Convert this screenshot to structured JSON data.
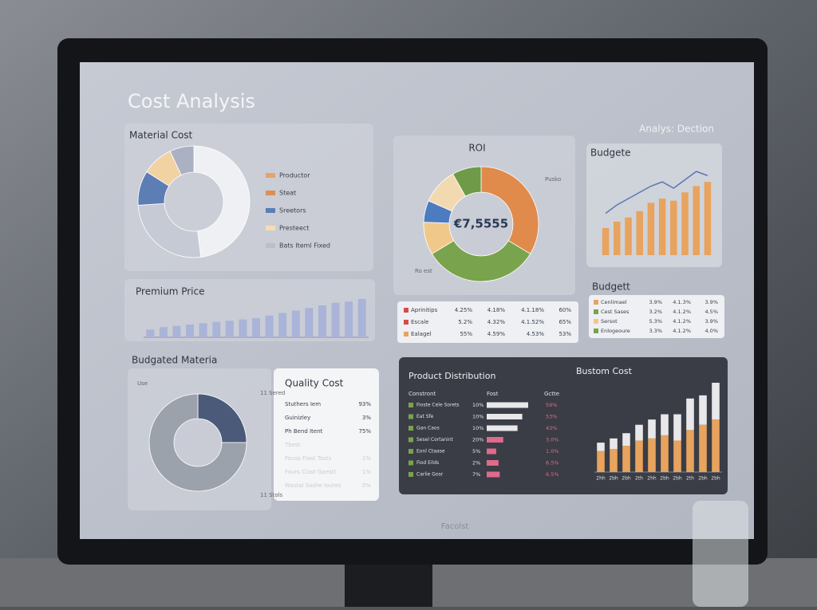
{
  "header": {
    "title": "Cost Analysis",
    "subtitle": "Analys: Dection",
    "brand": "Facolst"
  },
  "chart_data": [
    {
      "type": "donut",
      "title": "Material Cost",
      "categories": [
        "Productor",
        "Steat",
        "Sreetors",
        "Presteect",
        "Bats Iteml Fixed"
      ],
      "values": [
        48,
        26,
        10,
        9,
        7
      ],
      "colors": [
        "#eef0f3",
        "#c5cad4",
        "#5d7db5",
        "#f1d2a3",
        "#a9b1c2"
      ],
      "legend_colors": [
        "#e6a46a",
        "#d98f55",
        "#5d7db5",
        "#f5dcb5",
        "#b8bfcc"
      ]
    },
    {
      "type": "bar",
      "title": "Premium Price",
      "values": [
        6,
        8,
        9,
        10,
        11,
        12,
        13,
        14,
        15,
        17,
        19,
        21,
        23,
        25,
        27,
        28,
        30
      ],
      "color": "#aab3d8"
    },
    {
      "type": "donut",
      "title": "ROI",
      "center_label": "€7,5555",
      "annotations": [
        "Pusko",
        "Ro est"
      ],
      "values": [
        33,
        32,
        9,
        6,
        10,
        8
      ],
      "colors": [
        "#e08a4c",
        "#7aa34e",
        "#f0c88a",
        "#4d7bbf",
        "#f3d9b0",
        "#6f9a48"
      ]
    },
    {
      "type": "bar_line",
      "title": "Budgete",
      "values": [
        13,
        16,
        18,
        21,
        25,
        27,
        26,
        30,
        33,
        35
      ],
      "line": [
        20,
        24,
        27,
        30,
        33,
        35,
        32,
        36,
        40,
        38
      ],
      "color": "#e8a35e",
      "line_color": "#5a78b0"
    },
    {
      "type": "donut",
      "title": "Budgated Materia",
      "annotations": [
        "Use",
        "11 Sered",
        "11 Stols"
      ],
      "values": [
        25,
        75
      ],
      "colors": [
        "#4a5a78",
        "#9ca2ab"
      ]
    },
    {
      "type": "hbar",
      "title": "Product Distribution",
      "headers": [
        "Constront",
        "Fost",
        "Gctte"
      ],
      "categories": [
        "Fioste Cele Sorets",
        "Eat Sfe",
        "Gan Caos",
        "Sesel Cortanint",
        "Eonl Ctaase",
        "Fiod Eilds",
        "Carlie Gosr"
      ],
      "left_labels": [
        "10%",
        "10%",
        "10%",
        "20%",
        "5%",
        "2%",
        "7%"
      ],
      "values": [
        70,
        60,
        52,
        28,
        16,
        20,
        22
      ],
      "colors": [
        "#e8e8ea",
        "#e8e8ea",
        "#e8e8ea",
        "#e06a8a",
        "#e06a8a",
        "#e06a8a",
        "#e06a8a"
      ],
      "right_labels": [
        "59%",
        "53%",
        "43%",
        "3.0%",
        "1.0%",
        "6.5%",
        "6.5%"
      ]
    },
    {
      "type": "stacked_bar",
      "title": "Bustom Cost",
      "categories": [
        "2hh",
        "2bh",
        "2bh",
        "2th",
        "2hh",
        "2bh",
        "2bh",
        "2th",
        "2bh",
        "2bh"
      ],
      "series": [
        {
          "color": "#e8a35e",
          "values": [
            20,
            22,
            25,
            30,
            32,
            35,
            30,
            40,
            45,
            50
          ]
        },
        {
          "color": "#e8e8ea",
          "values": [
            8,
            10,
            12,
            15,
            18,
            20,
            25,
            30,
            28,
            35
          ]
        }
      ]
    }
  ],
  "tables": {
    "roi": {
      "rows": [
        [
          "Aprinitips",
          "4.25%",
          "4.18%",
          "4.1.18%",
          "60%"
        ],
        [
          "Escale",
          "5.2%",
          "4.32%",
          "4.1.52%",
          "65%"
        ],
        [
          "Ealagel",
          "55%",
          "4.59%",
          "4.53%",
          "53%"
        ]
      ],
      "colors": [
        "#d84a4a",
        "#d84a4a",
        "#e8a35e"
      ]
    },
    "budgett": {
      "title": "Budgett",
      "rows": [
        [
          "Cenlimael",
          "3.9%",
          "4.1.3%",
          "3.9%"
        ],
        [
          "Cest Sases",
          "3.2%",
          "4.1.2%",
          "4.5%"
        ],
        [
          "Sersot",
          "5.3%",
          "4.1.2%",
          "3.9%"
        ],
        [
          "Enlogeoure",
          "3.3%",
          "4.1.2%",
          "4.0%"
        ]
      ],
      "colors": [
        "#e8a35e",
        "#7aa34e",
        "#f0c88a",
        "#7aa34e"
      ]
    },
    "quality": {
      "title": "Quality Cost",
      "rows": [
        [
          "Stuthers Iem",
          "93%"
        ],
        [
          "Guinizley",
          "3%"
        ],
        [
          "Ph Bend Itent",
          "75%"
        ],
        [
          "Tbest"
        ],
        [
          "Fouss Flast Tasts",
          "1%"
        ],
        [
          "Fours Clast Gaestt",
          "1%"
        ],
        [
          "Wastal Sashe Ioutes",
          "0%"
        ]
      ]
    }
  }
}
